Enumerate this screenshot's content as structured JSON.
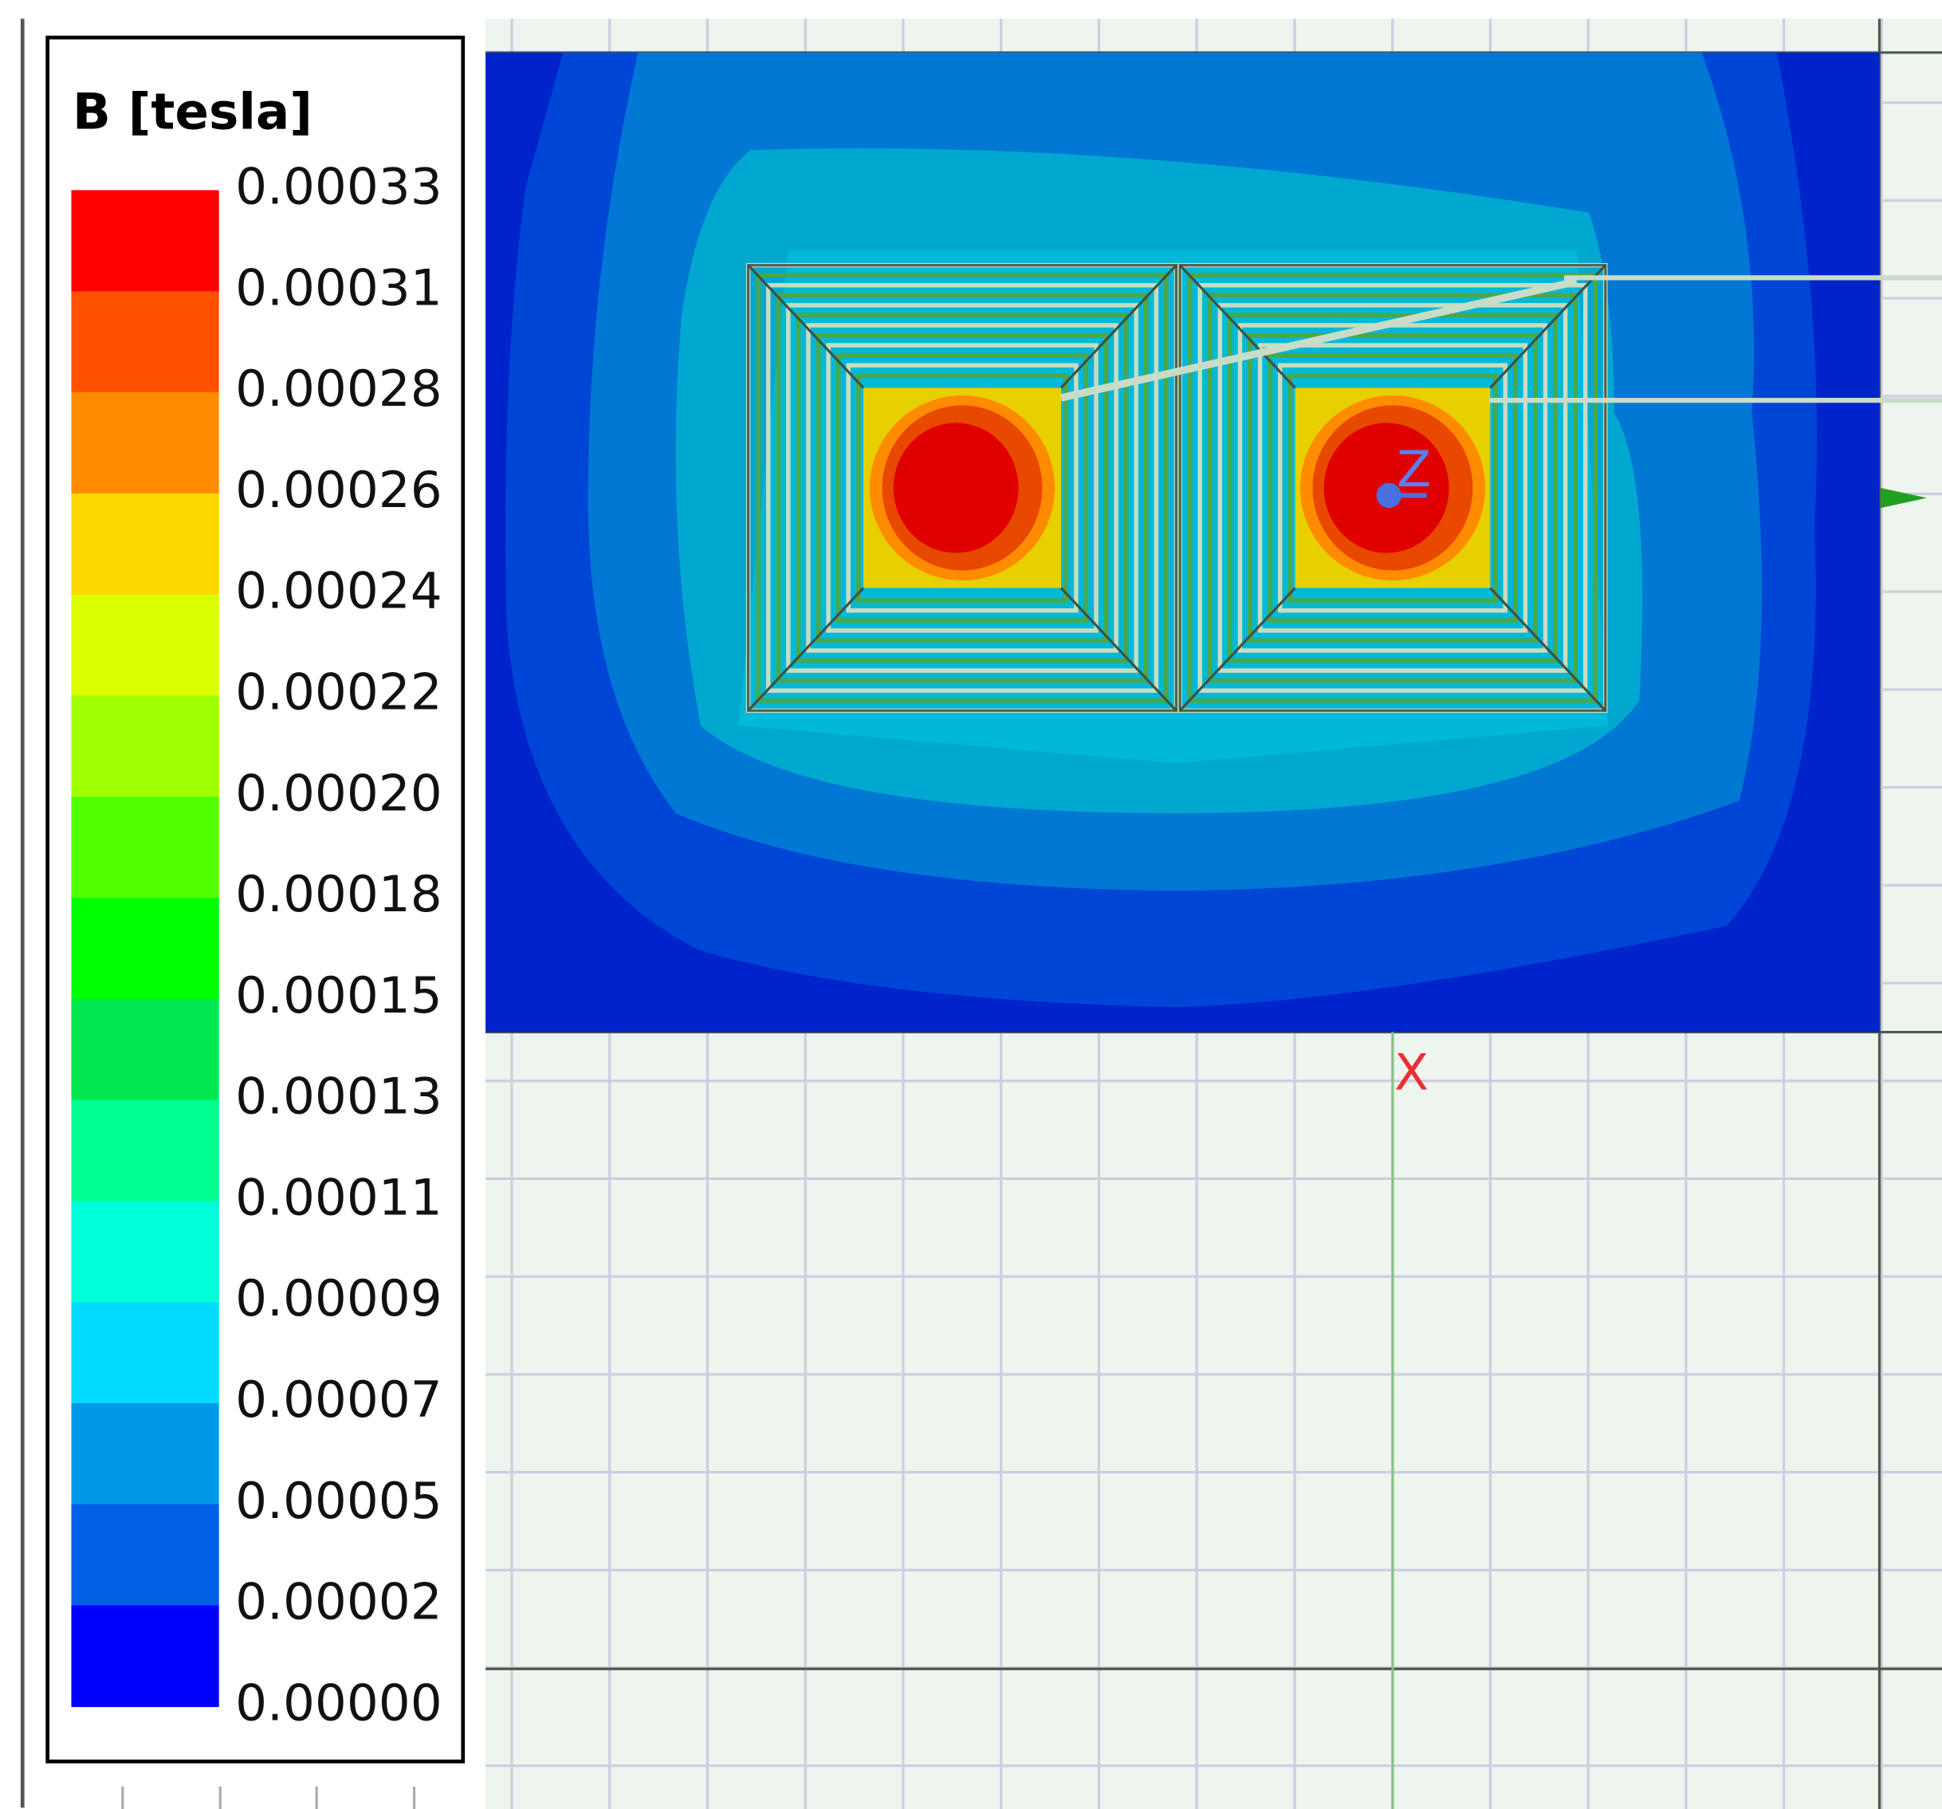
{
  "legend": {
    "title": "B [tesla]",
    "labels": [
      "0.00033",
      "0.00031",
      "0.00028",
      "0.00026",
      "0.00024",
      "0.00022",
      "0.00020",
      "0.00018",
      "0.00015",
      "0.00013",
      "0.00011",
      "0.00009",
      "0.00007",
      "0.00005",
      "0.00002",
      "0.00000"
    ],
    "colors": [
      "#ff0000",
      "#ff5000",
      "#ff8c00",
      "#ffd700",
      "#dcff00",
      "#a0ff00",
      "#50ff00",
      "#00ff00",
      "#00e850",
      "#00ff90",
      "#00ffd8",
      "#00dcff",
      "#0098e8",
      "#0060e8",
      "#0000ff"
    ]
  },
  "axes": {
    "x": "X",
    "z": "Z"
  }
}
